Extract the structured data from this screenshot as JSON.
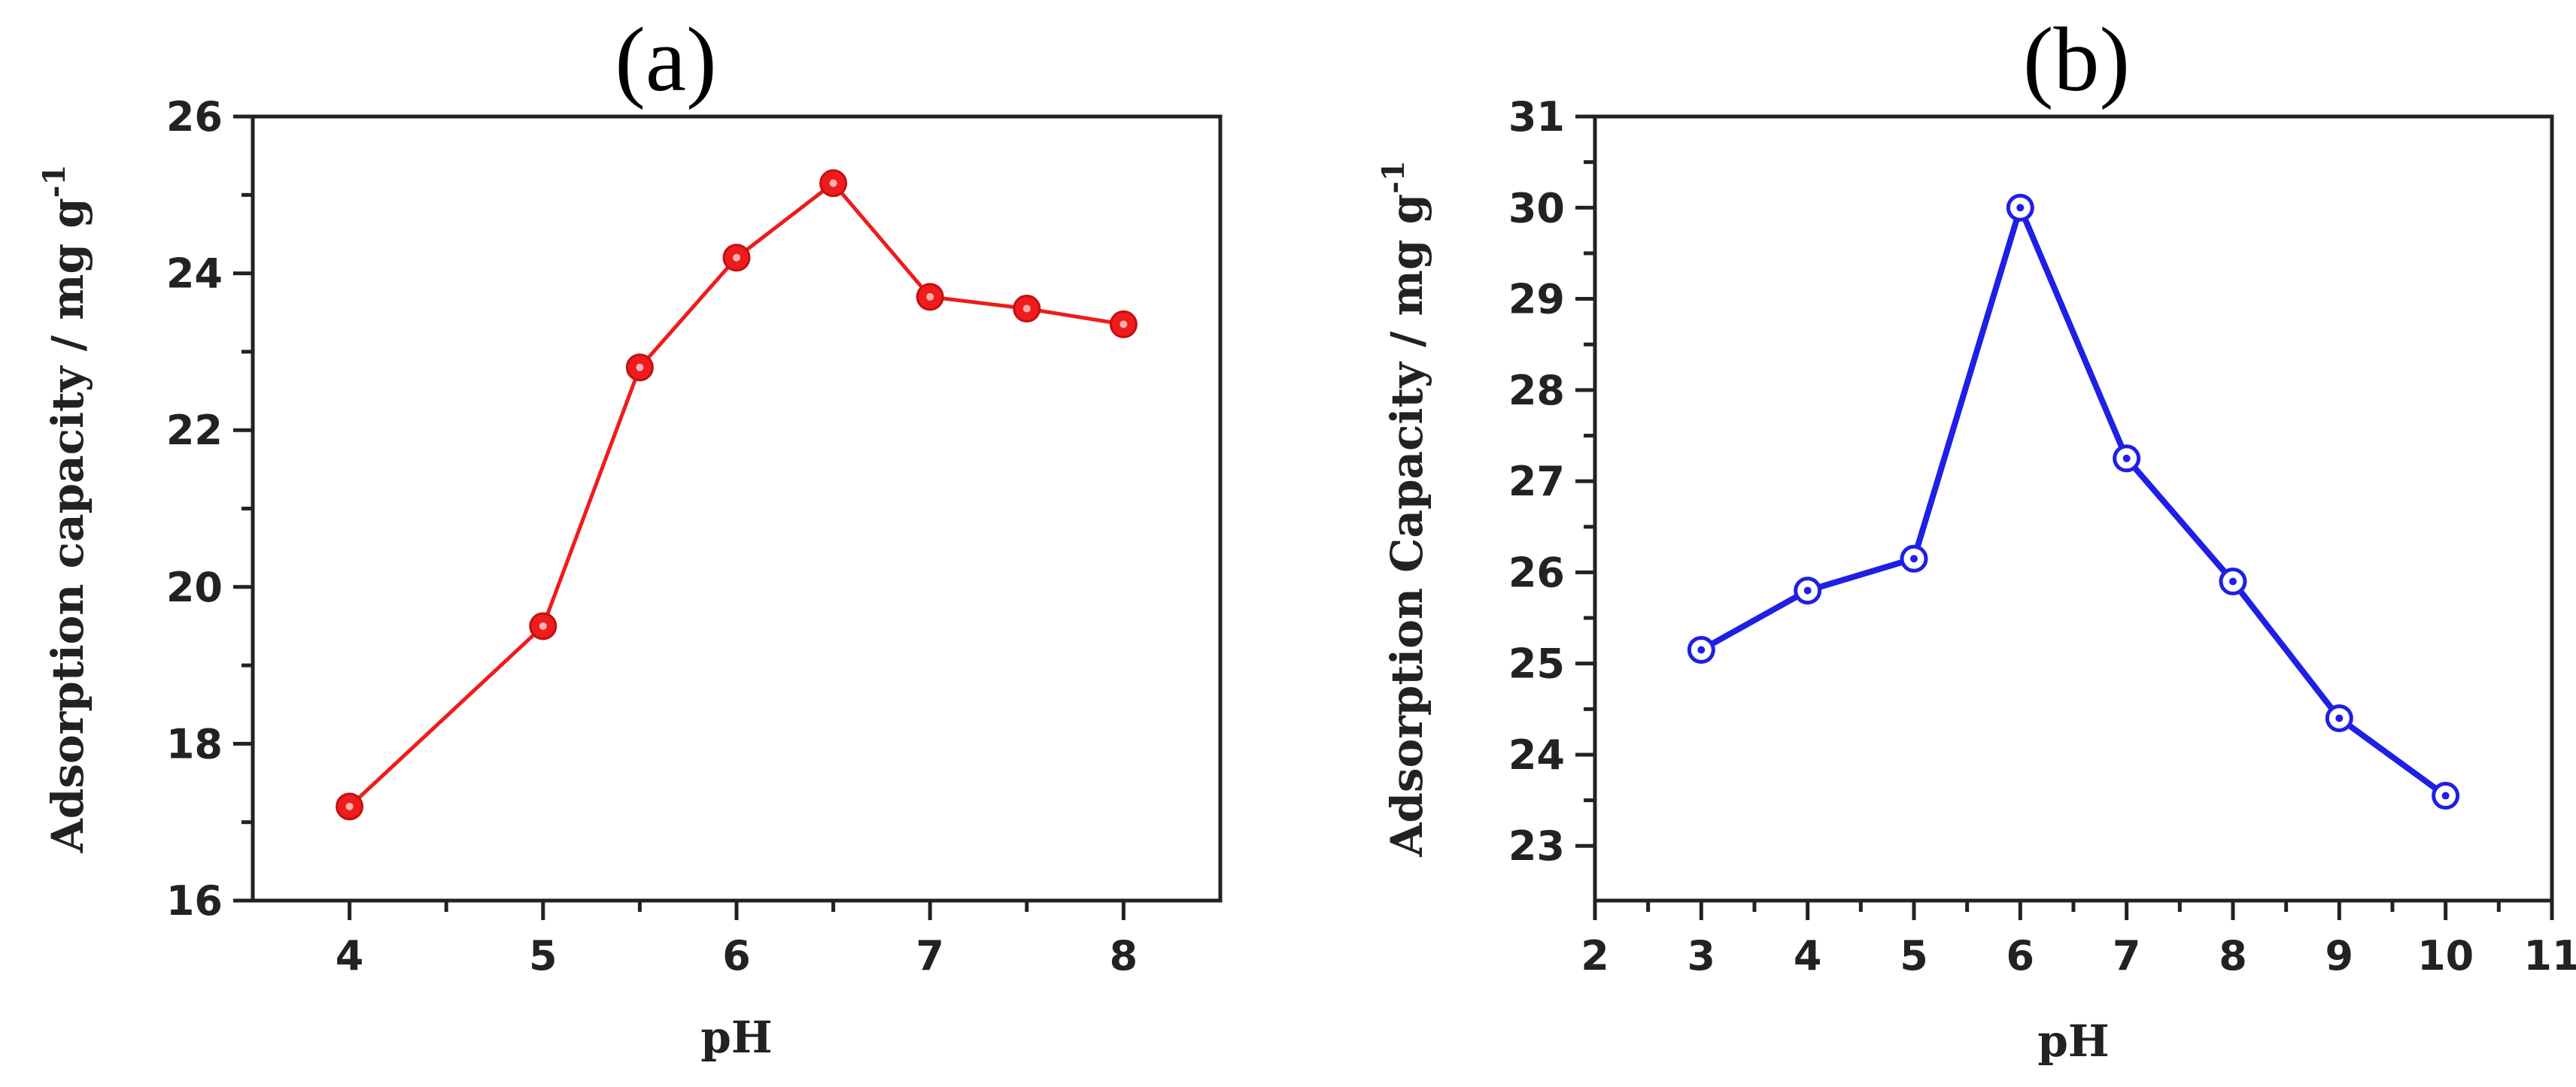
{
  "chart_data": [
    {
      "type": "line",
      "title": "(a)",
      "xlabel": "pH",
      "ylabel": "Adsorption capacity / mg g",
      "ylabel_sup": "-1",
      "xlim": [
        3.5,
        8.5
      ],
      "ylim": [
        16,
        26
      ],
      "xticks": [
        4,
        5,
        6,
        7,
        8
      ],
      "xminor": [
        4.5,
        5.5,
        6.5,
        7.5
      ],
      "yticks": [
        16,
        18,
        20,
        22,
        24,
        26
      ],
      "yminor": [
        17,
        19,
        21,
        23,
        25
      ],
      "grid": false,
      "color": "#ee1c1c",
      "marker": "filled-circle",
      "x": [
        4,
        5,
        5.5,
        6,
        6.5,
        7,
        7.5,
        8
      ],
      "y": [
        17.2,
        19.5,
        22.8,
        24.2,
        25.15,
        23.7,
        23.55,
        23.35
      ]
    },
    {
      "type": "line",
      "title": "(b)",
      "xlabel": "pH",
      "ylabel": "Adsorption Capacity / mg g",
      "ylabel_sup": "-1",
      "xlim": [
        2,
        11
      ],
      "ylim": [
        22.4,
        31
      ],
      "xticks": [
        2,
        3,
        4,
        5,
        6,
        7,
        8,
        9,
        10,
        11
      ],
      "xminor": [
        2.5,
        3.5,
        4.5,
        5.5,
        6.5,
        7.5,
        8.5,
        9.5,
        10.5
      ],
      "yticks": [
        23,
        24,
        25,
        26,
        27,
        28,
        29,
        30,
        31
      ],
      "yminor": [
        23.5,
        24.5,
        25.5,
        26.5,
        27.5,
        28.5,
        29.5,
        30.5
      ],
      "grid": false,
      "color": "#1f1fe6",
      "marker": "dotted-circle",
      "x": [
        3,
        4,
        5,
        6,
        7,
        8,
        9,
        10
      ],
      "y": [
        25.15,
        25.8,
        26.15,
        30.0,
        27.25,
        25.9,
        24.4,
        23.55
      ]
    }
  ]
}
